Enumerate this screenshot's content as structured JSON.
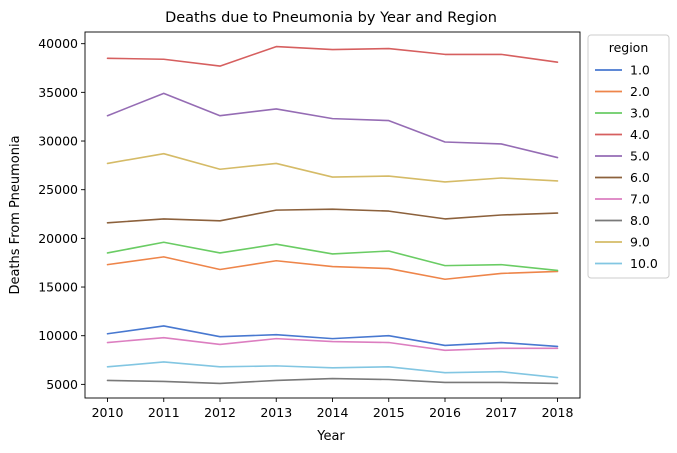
{
  "chart_data": {
    "type": "line",
    "title": "Deaths due to Pneumonia by Year and Region",
    "xlabel": "Year",
    "ylabel": "Deaths From Pneumonia",
    "x": [
      2010,
      2011,
      2012,
      2013,
      2014,
      2015,
      2016,
      2017,
      2018
    ],
    "xlim": [
      2009.6,
      2018.4
    ],
    "ylim": [
      3600,
      41200
    ],
    "y_ticks": [
      5000,
      10000,
      15000,
      20000,
      25000,
      30000,
      35000,
      40000
    ],
    "grid": false,
    "legend": {
      "title": "region",
      "placement": "outside-right-top"
    },
    "series": [
      {
        "name": "1.0",
        "color": "#4878d0",
        "values": [
          10200,
          11000,
          9900,
          10100,
          9700,
          10000,
          9000,
          9300,
          8900
        ]
      },
      {
        "name": "2.0",
        "color": "#ee854a",
        "values": [
          17300,
          18100,
          16800,
          17700,
          17100,
          16900,
          15800,
          16400,
          16600
        ]
      },
      {
        "name": "3.0",
        "color": "#6acc64",
        "values": [
          18500,
          19600,
          18500,
          19400,
          18400,
          18700,
          17200,
          17300,
          16700
        ]
      },
      {
        "name": "4.0",
        "color": "#d65f5f",
        "values": [
          38500,
          38400,
          37700,
          39700,
          39400,
          39500,
          38900,
          38900,
          38100
        ]
      },
      {
        "name": "5.0",
        "color": "#956cb4",
        "values": [
          32600,
          34900,
          32600,
          33300,
          32300,
          32100,
          29900,
          29700,
          28300
        ]
      },
      {
        "name": "6.0",
        "color": "#8c613c",
        "values": [
          21600,
          22000,
          21800,
          22900,
          23000,
          22800,
          22000,
          22400,
          22600
        ]
      },
      {
        "name": "7.0",
        "color": "#dc7ec0",
        "values": [
          9300,
          9800,
          9100,
          9700,
          9400,
          9300,
          8500,
          8700,
          8700
        ]
      },
      {
        "name": "8.0",
        "color": "#797979",
        "values": [
          5400,
          5300,
          5100,
          5400,
          5600,
          5500,
          5200,
          5200,
          5100
        ]
      },
      {
        "name": "9.0",
        "color": "#d5bb67",
        "values": [
          27700,
          28700,
          27100,
          27700,
          26300,
          26400,
          25800,
          26200,
          25900
        ]
      },
      {
        "name": "10.0",
        "color": "#82c6e2",
        "values": [
          6800,
          7300,
          6800,
          6900,
          6700,
          6800,
          6200,
          6300,
          5700
        ]
      }
    ]
  }
}
